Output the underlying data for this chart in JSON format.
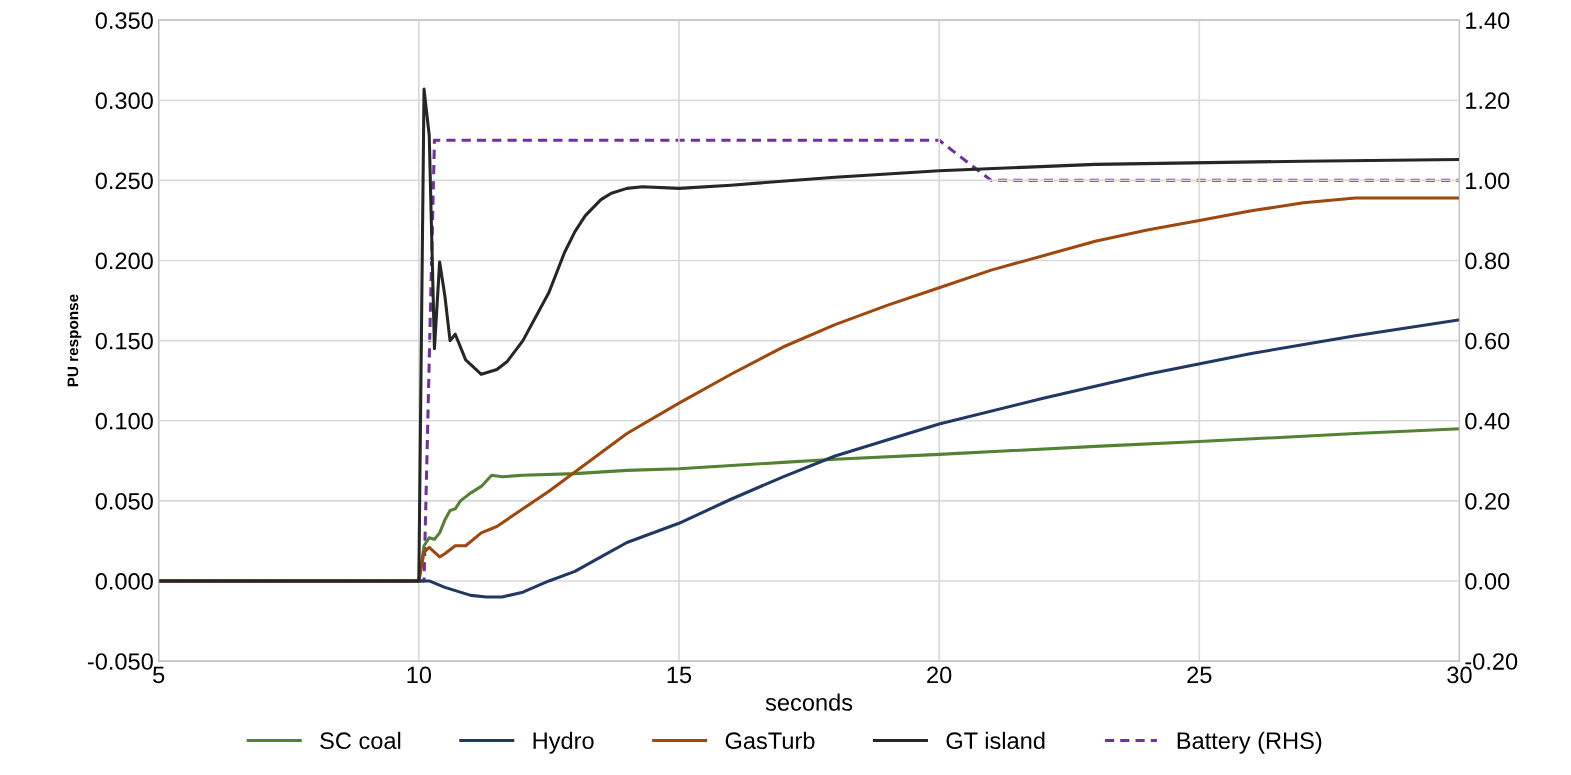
{
  "chart_data": {
    "type": "line",
    "xlabel": "seconds",
    "ylabel": "PU response",
    "xlim": [
      5,
      30
    ],
    "xticks": [
      5,
      10,
      15,
      20,
      25,
      30
    ],
    "ylim": [
      -0.05,
      0.35
    ],
    "yticks": [
      {
        "value": -0.05,
        "label": "-0.050"
      },
      {
        "value": 0,
        "label": "0.000"
      },
      {
        "value": 0.05,
        "label": "0.050"
      },
      {
        "value": 0.1,
        "label": "0.100"
      },
      {
        "value": 0.15,
        "label": "0.150"
      },
      {
        "value": 0.2,
        "label": "0.200"
      },
      {
        "value": 0.25,
        "label": "0.250"
      },
      {
        "value": 0.3,
        "label": "0.300"
      },
      {
        "value": 0.35,
        "label": "0.350"
      }
    ],
    "y2lim": [
      -0.2,
      1.4
    ],
    "y2ticks": [
      {
        "value": -0.2,
        "label": "-0.20"
      },
      {
        "value": 0,
        "label": "0.00"
      },
      {
        "value": 0.2,
        "label": "0.20"
      },
      {
        "value": 0.4,
        "label": "0.40"
      },
      {
        "value": 0.6,
        "label": "0.60"
      },
      {
        "value": 0.8,
        "label": "0.80"
      },
      {
        "value": 1.0,
        "label": "1.00"
      },
      {
        "value": 1.2,
        "label": "1.20"
      },
      {
        "value": 1.4,
        "label": "1.40"
      }
    ],
    "grid": true,
    "legend": "bottom",
    "marker": "none",
    "series": [
      {
        "name": "SC coal",
        "color": "#548235",
        "x": [
          5,
          10,
          10.1,
          10.2,
          10.3,
          10.4,
          10.5,
          10.6,
          10.7,
          10.8,
          11.0,
          11.2,
          11.4,
          11.6,
          12,
          13,
          14,
          15,
          17,
          18,
          20,
          23,
          25,
          28,
          30
        ],
        "values": [
          0,
          0,
          0.022,
          0.027,
          0.026,
          0.03,
          0.038,
          0.044,
          0.045,
          0.05,
          0.055,
          0.059,
          0.066,
          0.065,
          0.066,
          0.067,
          0.069,
          0.07,
          0.074,
          0.076,
          0.079,
          0.084,
          0.087,
          0.092,
          0.095
        ]
      },
      {
        "name": "Hydro",
        "color": "#203864",
        "x": [
          5,
          10,
          10.2,
          10.5,
          11,
          11.3,
          11.6,
          12,
          12.5,
          13,
          13.5,
          14,
          15,
          16,
          17,
          18,
          19,
          20,
          22,
          24,
          26,
          28,
          30
        ],
        "values": [
          0,
          0,
          0,
          -0.004,
          -0.009,
          -0.01,
          -0.01,
          -0.007,
          0.0,
          0.006,
          0.015,
          0.024,
          0.036,
          0.051,
          0.065,
          0.078,
          0.088,
          0.098,
          0.114,
          0.129,
          0.142,
          0.153,
          0.163
        ]
      },
      {
        "name": "GasTurb",
        "color": "#9e480e",
        "x": [
          5,
          10,
          10.1,
          10.2,
          10.4,
          10.5,
          10.7,
          10.9,
          11.2,
          11.5,
          12,
          12.5,
          13,
          13.5,
          14,
          15,
          16,
          17,
          18,
          19,
          20,
          21,
          22,
          23,
          24,
          25,
          26,
          27,
          28,
          30
        ],
        "values": [
          0,
          0,
          0.018,
          0.021,
          0.015,
          0.017,
          0.022,
          0.022,
          0.03,
          0.034,
          0.045,
          0.056,
          0.068,
          0.08,
          0.092,
          0.111,
          0.129,
          0.146,
          0.16,
          0.172,
          0.183,
          0.194,
          0.203,
          0.212,
          0.219,
          0.225,
          0.231,
          0.236,
          0.239,
          0.239
        ]
      },
      {
        "name": "GT island",
        "color": "#262626",
        "x": [
          5,
          10,
          10.1,
          10.2,
          10.3,
          10.4,
          10.5,
          10.6,
          10.7,
          10.9,
          11.0,
          11.2,
          11.5,
          11.7,
          12,
          12.3,
          12.5,
          12.8,
          13,
          13.2,
          13.5,
          13.7,
          14,
          14.3,
          15,
          16,
          18,
          20,
          23,
          27,
          30
        ],
        "values": [
          0,
          0,
          0.307,
          0.278,
          0.145,
          0.199,
          0.178,
          0.15,
          0.154,
          0.138,
          0.135,
          0.129,
          0.132,
          0.137,
          0.15,
          0.168,
          0.18,
          0.205,
          0.218,
          0.228,
          0.238,
          0.242,
          0.245,
          0.246,
          0.245,
          0.247,
          0.252,
          0.256,
          0.26,
          0.262,
          0.263
        ]
      },
      {
        "name": "Battery (RHS)",
        "color": "#7030a0",
        "axis": "y2",
        "line_style": "dashed",
        "x": [
          5,
          10.1,
          10.3,
          20,
          21,
          30
        ],
        "values": [
          0,
          0,
          1.1,
          1.1,
          1.0,
          1.0
        ]
      }
    ]
  }
}
